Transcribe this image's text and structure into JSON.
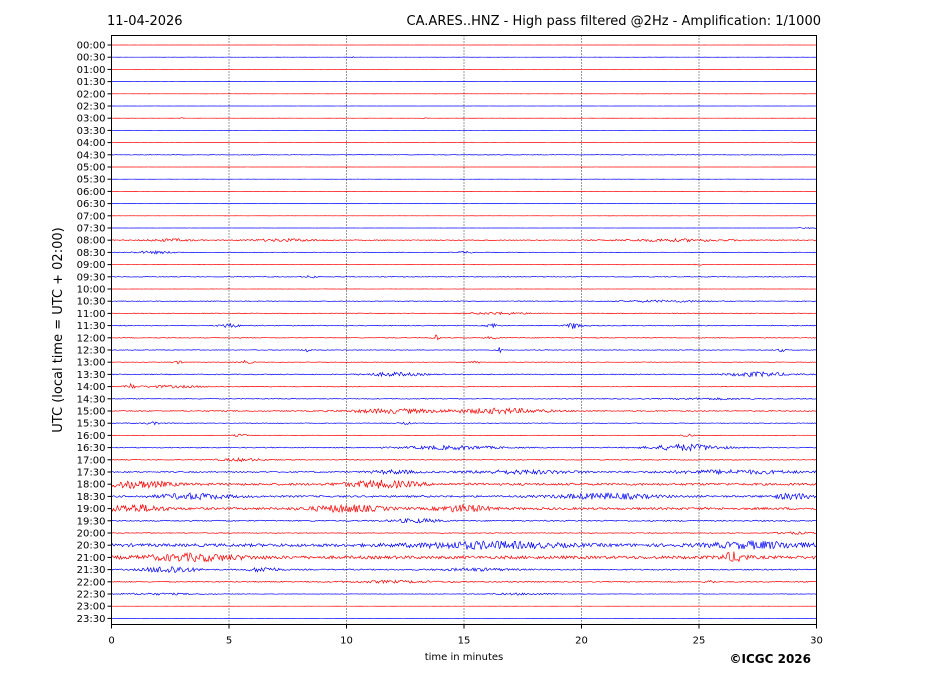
{
  "header": {
    "date": "11-04-2026",
    "station_title": "CA.ARES..HNZ - High pass filtered @2Hz - Amplification: 1/1000"
  },
  "footer": {
    "copyright": "©ICGC 2026"
  },
  "chart_data": {
    "type": "line",
    "subtype": "helicorder",
    "title": "CA.ARES..HNZ - High pass filtered @2Hz - Amplification: 1/1000",
    "date": "11-04-2026",
    "xlabel": "time in minutes",
    "ylabel": "UTC (local time = UTC + 02:00)",
    "xlim": [
      0,
      30
    ],
    "xticks": [
      0,
      5,
      10,
      15,
      20,
      25,
      30
    ],
    "xtick_labels": [
      "0",
      "5",
      "10",
      "15",
      "20",
      "25",
      "30"
    ],
    "grid": "vertical dotted at x ticks",
    "colors": [
      "#ff0000",
      "#0000ff"
    ],
    "traces": [
      {
        "label": "00:00",
        "color": "#ff0000",
        "amp": 0.05,
        "bursts": []
      },
      {
        "label": "00:30",
        "color": "#0000ff",
        "amp": 0.05,
        "bursts": [
          [
            10.3,
            0.1,
            2
          ]
        ]
      },
      {
        "label": "01:00",
        "color": "#ff0000",
        "amp": 0.05,
        "bursts": []
      },
      {
        "label": "01:30",
        "color": "#0000ff",
        "amp": 0.05,
        "bursts": []
      },
      {
        "label": "02:00",
        "color": "#ff0000",
        "amp": 0.05,
        "bursts": []
      },
      {
        "label": "02:30",
        "color": "#0000ff",
        "amp": 0.05,
        "bursts": []
      },
      {
        "label": "03:00",
        "color": "#ff0000",
        "amp": 0.05,
        "bursts": [
          [
            3.0,
            0.1,
            2
          ],
          [
            13.3,
            0.1,
            2
          ]
        ]
      },
      {
        "label": "03:30",
        "color": "#0000ff",
        "amp": 0.05,
        "bursts": []
      },
      {
        "label": "04:00",
        "color": "#ff0000",
        "amp": 0.05,
        "bursts": [
          [
            29.0,
            0.3,
            2
          ]
        ]
      },
      {
        "label": "04:30",
        "color": "#0000ff",
        "amp": 0.25,
        "bursts": []
      },
      {
        "label": "05:00",
        "color": "#ff0000",
        "amp": 0.05,
        "bursts": []
      },
      {
        "label": "05:30",
        "color": "#0000ff",
        "amp": 0.05,
        "bursts": []
      },
      {
        "label": "06:00",
        "color": "#ff0000",
        "amp": 0.1,
        "bursts": [
          [
            27.0,
            0.3,
            2
          ]
        ]
      },
      {
        "label": "06:30",
        "color": "#0000ff",
        "amp": 0.05,
        "bursts": []
      },
      {
        "label": "07:00",
        "color": "#ff0000",
        "amp": 0.05,
        "bursts": []
      },
      {
        "label": "07:30",
        "color": "#0000ff",
        "amp": 0.05,
        "bursts": [
          [
            29.6,
            0.5,
            2
          ]
        ]
      },
      {
        "label": "08:00",
        "color": "#ff0000",
        "amp": 0.4,
        "bursts": [
          [
            2.5,
            1.0,
            3
          ],
          [
            7.5,
            1.5,
            3
          ],
          [
            24,
            2.5,
            3
          ]
        ]
      },
      {
        "label": "08:30",
        "color": "#0000ff",
        "amp": 0.25,
        "bursts": [
          [
            1.8,
            1.0,
            4
          ],
          [
            15.0,
            0.3,
            4
          ]
        ]
      },
      {
        "label": "09:00",
        "color": "#ff0000",
        "amp": 0.15,
        "bursts": [
          [
            25.0,
            0.2,
            3
          ]
        ]
      },
      {
        "label": "09:30",
        "color": "#0000ff",
        "amp": 0.3,
        "bursts": [
          [
            8.5,
            0.3,
            4
          ]
        ]
      },
      {
        "label": "10:00",
        "color": "#ff0000",
        "amp": 0.1,
        "bursts": []
      },
      {
        "label": "10:30",
        "color": "#0000ff",
        "amp": 0.3,
        "bursts": [
          [
            23.5,
            2.0,
            3
          ]
        ]
      },
      {
        "label": "11:00",
        "color": "#ff0000",
        "amp": 0.35,
        "bursts": [
          [
            16.5,
            1.2,
            3
          ]
        ]
      },
      {
        "label": "11:30",
        "color": "#0000ff",
        "amp": 0.4,
        "bursts": [
          [
            5.0,
            0.4,
            5
          ],
          [
            16.2,
            0.2,
            7
          ],
          [
            19.7,
            0.3,
            8
          ]
        ]
      },
      {
        "label": "12:00",
        "color": "#ff0000",
        "amp": 0.3,
        "bursts": [
          [
            13.8,
            0.15,
            9
          ],
          [
            16.2,
            0.3,
            4
          ]
        ]
      },
      {
        "label": "12:30",
        "color": "#0000ff",
        "amp": 0.3,
        "bursts": [
          [
            8.3,
            0.2,
            5
          ],
          [
            16.5,
            0.1,
            9
          ],
          [
            28.5,
            0.2,
            5
          ]
        ]
      },
      {
        "label": "13:00",
        "color": "#ff0000",
        "amp": 0.25,
        "bursts": [
          [
            2.8,
            0.2,
            5
          ],
          [
            5.7,
            0.3,
            5
          ],
          [
            15.5,
            0.2,
            4
          ]
        ]
      },
      {
        "label": "13:30",
        "color": "#0000ff",
        "amp": 0.45,
        "bursts": [
          [
            12.0,
            1.2,
            4
          ],
          [
            27.5,
            1.2,
            5
          ]
        ]
      },
      {
        "label": "14:00",
        "color": "#ff0000",
        "amp": 0.35,
        "bursts": [
          [
            0.8,
            0.2,
            7
          ],
          [
            2.5,
            1.5,
            3
          ]
        ]
      },
      {
        "label": "14:30",
        "color": "#0000ff",
        "amp": 0.35,
        "bursts": [
          [
            25.5,
            2.0,
            2
          ]
        ]
      },
      {
        "label": "15:00",
        "color": "#ff0000",
        "amp": 0.5,
        "bursts": [
          [
            12.0,
            2.0,
            4
          ],
          [
            16.5,
            2.0,
            5
          ]
        ]
      },
      {
        "label": "15:30",
        "color": "#0000ff",
        "amp": 0.3,
        "bursts": [
          [
            1.8,
            0.4,
            4
          ],
          [
            12.5,
            0.3,
            4
          ]
        ]
      },
      {
        "label": "16:00",
        "color": "#ff0000",
        "amp": 0.2,
        "bursts": [
          [
            5.5,
            0.3,
            4
          ],
          [
            24.5,
            0.3,
            4
          ]
        ]
      },
      {
        "label": "16:30",
        "color": "#0000ff",
        "amp": 0.45,
        "bursts": [
          [
            14.5,
            2.0,
            4
          ],
          [
            24.5,
            1.5,
            7
          ]
        ]
      },
      {
        "label": "17:00",
        "color": "#ff0000",
        "amp": 0.35,
        "bursts": [
          [
            5.5,
            1.0,
            4
          ]
        ]
      },
      {
        "label": "17:30",
        "color": "#0000ff",
        "amp": 0.6,
        "bursts": [
          [
            12.0,
            1.0,
            3
          ],
          [
            17.5,
            2.5,
            3
          ],
          [
            26.5,
            3.0,
            3
          ]
        ]
      },
      {
        "label": "18:00",
        "color": "#ff0000",
        "amp": 1.1,
        "bursts": [
          [
            1.0,
            1.5,
            3
          ],
          [
            11.5,
            1.5,
            3
          ]
        ]
      },
      {
        "label": "18:30",
        "color": "#0000ff",
        "amp": 0.9,
        "bursts": [
          [
            3.5,
            1.5,
            3
          ],
          [
            21.0,
            2.0,
            3
          ],
          [
            29.0,
            0.8,
            3
          ]
        ]
      },
      {
        "label": "19:00",
        "color": "#ff0000",
        "amp": 1.1,
        "bursts": [
          [
            1.0,
            1.2,
            3
          ],
          [
            10.0,
            1.5,
            3
          ],
          [
            15.0,
            1.0,
            3
          ]
        ]
      },
      {
        "label": "19:30",
        "color": "#0000ff",
        "amp": 0.6,
        "bursts": [
          [
            13.0,
            1.0,
            3
          ]
        ]
      },
      {
        "label": "20:00",
        "color": "#ff0000",
        "amp": 0.35,
        "bursts": [
          [
            29.0,
            0.8,
            3
          ]
        ]
      },
      {
        "label": "20:30",
        "color": "#0000ff",
        "amp": 1.5,
        "bursts": [
          [
            16.0,
            3.0,
            2
          ],
          [
            27.5,
            2.0,
            2
          ]
        ]
      },
      {
        "label": "21:00",
        "color": "#ff0000",
        "amp": 1.5,
        "bursts": [
          [
            3.5,
            2.0,
            2
          ],
          [
            26.5,
            0.5,
            3
          ]
        ]
      },
      {
        "label": "21:30",
        "color": "#0000ff",
        "amp": 0.6,
        "bursts": [
          [
            2.5,
            1.0,
            6
          ],
          [
            6.5,
            0.6,
            4
          ],
          [
            15.5,
            1.5,
            2
          ]
        ]
      },
      {
        "label": "22:00",
        "color": "#ff0000",
        "amp": 0.5,
        "bursts": [
          [
            12.0,
            2.0,
            2
          ],
          [
            25.5,
            0.2,
            3
          ]
        ]
      },
      {
        "label": "22:30",
        "color": "#0000ff",
        "amp": 0.2,
        "bursts": [
          [
            2.0,
            2.0,
            3
          ],
          [
            17.5,
            1.5,
            3
          ]
        ]
      },
      {
        "label": "23:00",
        "color": "#ff0000",
        "amp": 0.04,
        "bursts": []
      },
      {
        "label": "23:30",
        "color": "#0000ff",
        "amp": 0.04,
        "bursts": []
      }
    ]
  }
}
